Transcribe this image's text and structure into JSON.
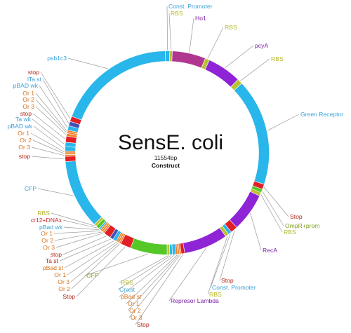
{
  "plasmid": {
    "name": "SensE. coli",
    "size": "11554bp",
    "type": "Construct"
  },
  "colors": {
    "backbone": "#29b6ea",
    "promoter": "#5ab4e8",
    "rbs": "#b9c22f",
    "cds_magenta": "#b0368f",
    "cds_purple": "#8e24d6",
    "gfp_green": "#55c828",
    "stop": "#e21f26",
    "operator": "#f07e2a",
    "tetra": "#3f4fb5",
    "label_orange": "#d6731e",
    "label_red": "#c62828",
    "label_green": "#7f9c1a",
    "label_blue": "#3aa0d8",
    "label_purple": "#7b1fa2",
    "label_yellowgreen": "#b5b82a",
    "label_darkred": "#b02418"
  },
  "features": [
    {
      "name": "Const. Promoter",
      "color": "#29b6ea"
    },
    {
      "name": "RBS",
      "color": "#b9c22f"
    },
    {
      "name": "Ho1",
      "color": "#b0368f"
    },
    {
      "name": "RBS",
      "color": "#b9c22f"
    },
    {
      "name": "pcyA",
      "color": "#8e24d6"
    },
    {
      "name": "RBS",
      "color": "#b9c22f"
    },
    {
      "name": "Green Receptor",
      "color": "#29b6ea"
    },
    {
      "name": "Stop",
      "color": "#e21f26"
    },
    {
      "name": "OmpR+prom",
      "color": "#55c828"
    },
    {
      "name": "RBS",
      "color": "#b9c22f"
    },
    {
      "name": "RecA",
      "color": "#8e24d6"
    },
    {
      "name": "Stop",
      "color": "#e21f26"
    },
    {
      "name": "Const. Promoter",
      "color": "#29b6ea"
    },
    {
      "name": "RBS",
      "color": "#b9c22f"
    },
    {
      "name": "Represor Lambda",
      "color": "#8e24d6"
    },
    {
      "name": "Stop",
      "color": "#e21f26"
    },
    {
      "name": "Or 3",
      "color": "#f07e2a"
    },
    {
      "name": "Or 2",
      "color": "#f07e2a"
    },
    {
      "name": "Or 1",
      "color": "#f07e2a"
    },
    {
      "name": "pBad st",
      "color": "#29b6ea"
    },
    {
      "name": "Cnxst",
      "color": "#29b6ea"
    },
    {
      "name": "RBS",
      "color": "#b9c22f"
    },
    {
      "name": "GFP",
      "color": "#55c828"
    },
    {
      "name": "Stop",
      "color": "#e21f26"
    },
    {
      "name": "Or 2",
      "color": "#f07e2a"
    },
    {
      "name": "Or 3",
      "color": "#f07e2a"
    },
    {
      "name": "Or 1",
      "color": "#f07e2a"
    },
    {
      "name": "pBad st",
      "color": "#29b6ea"
    },
    {
      "name": "Ta st",
      "color": "#3f4fb5"
    },
    {
      "name": "stop",
      "color": "#e21f26"
    },
    {
      "name": "Or 3",
      "color": "#f07e2a"
    },
    {
      "name": "Or 2",
      "color": "#f07e2a"
    },
    {
      "name": "Or 1",
      "color": "#f07e2a"
    },
    {
      "name": "pBad wk",
      "color": "#29b6ea"
    },
    {
      "name": "cr12+DNAx",
      "color": "#55c828"
    },
    {
      "name": "RBS",
      "color": "#b9c22f"
    },
    {
      "name": "CFP",
      "color": "#29b6ea"
    },
    {
      "name": "stop",
      "color": "#e21f26"
    },
    {
      "name": "Or 3",
      "color": "#f07e2a"
    },
    {
      "name": "Or 2",
      "color": "#f07e2a"
    },
    {
      "name": "Or 1",
      "color": "#f07e2a"
    },
    {
      "name": "pBAD wk",
      "color": "#29b6ea"
    },
    {
      "name": "Ta wk",
      "color": "#29b6ea"
    },
    {
      "name": "stop",
      "color": "#e21f26"
    },
    {
      "name": "Or 3",
      "color": "#f07e2a"
    },
    {
      "name": "Or 2",
      "color": "#f07e2a"
    },
    {
      "name": "Or 1",
      "color": "#f07e2a"
    },
    {
      "name": "pBAD wk",
      "color": "#29b6ea"
    },
    {
      "name": "lTa st",
      "color": "#3f4fb5"
    },
    {
      "name": "stop",
      "color": "#e21f26"
    },
    {
      "name": "psb1c3",
      "color": "#29b6ea"
    }
  ]
}
